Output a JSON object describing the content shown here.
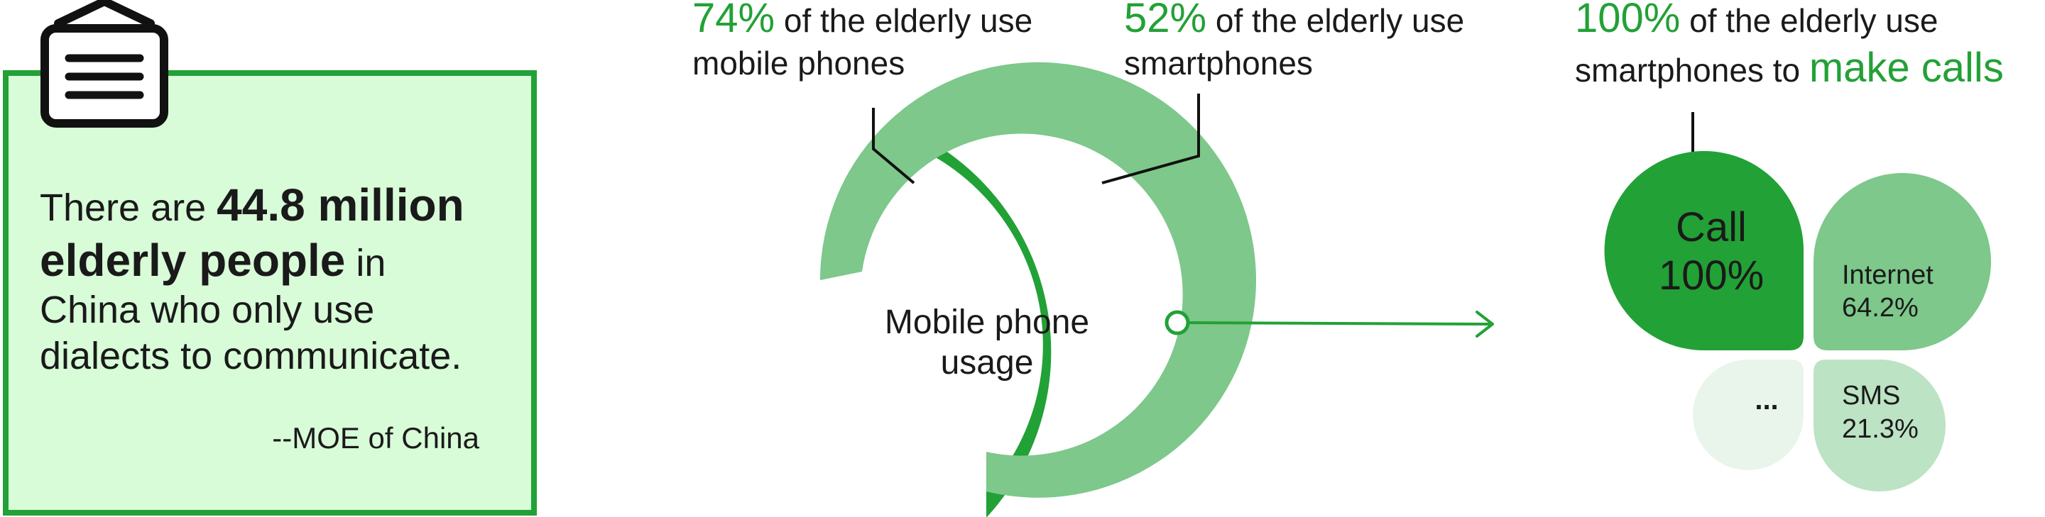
{
  "quote_card": {
    "line1_prefix": "There are",
    "line1_bold": "44.8 million",
    "line2_bold": "elderly people",
    "line2_suffix": "in",
    "line3": "China who only use",
    "line4": "dialects to communicate.",
    "source": "--MOE of China",
    "icon": "signboard-icon"
  },
  "mobile_usage": {
    "center_label_line1": "Mobile phone",
    "center_label_line2": "usage",
    "mobile": {
      "percent": 74,
      "percent_label": "74%",
      "text_line1": "of the elderly use",
      "text_line2": "mobile phones"
    },
    "smartphone": {
      "percent": 52,
      "percent_label": "52%",
      "text_line1": "of the elderly use",
      "text_line2": "smartphones"
    }
  },
  "smartphone_use": {
    "headline_percent": "100%",
    "headline_line1": "of  the elderly use",
    "headline_line2_prefix": "smartphones to",
    "headline_line2_emph": "make calls",
    "petals": [
      {
        "key": "call",
        "label": "Call",
        "value": "100%"
      },
      {
        "key": "internet",
        "label": "Internet",
        "value": "64.2%"
      },
      {
        "key": "sms",
        "label": "SMS",
        "value": "21.3%"
      },
      {
        "key": "other",
        "label": "...",
        "value": ""
      }
    ]
  },
  "colors": {
    "dark_green": "#22a136",
    "mid_green": "#7dc88a",
    "light_green": "#bce3c3",
    "pale_green": "#e9f5eb",
    "card_fill": "#d8fbd8",
    "card_border": "#22a136",
    "text": "#1a1a1a"
  }
}
